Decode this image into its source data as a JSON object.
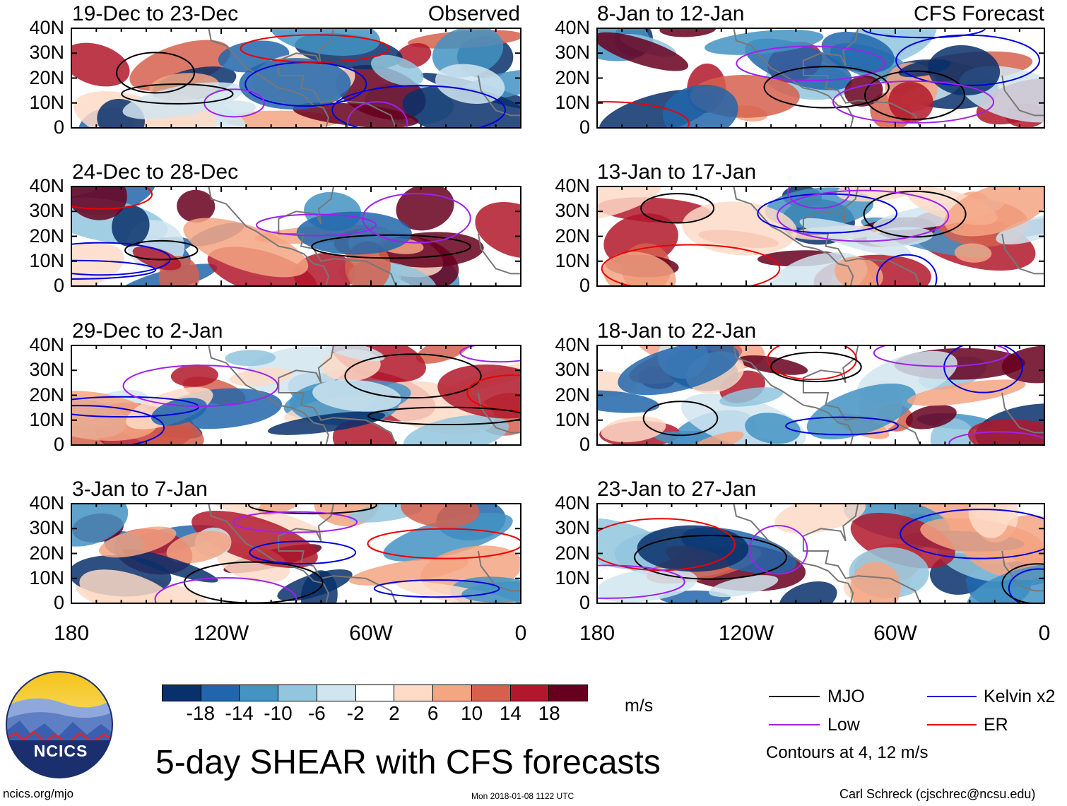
{
  "chart_data": {
    "type": "heatmap",
    "title": "5-day SHEAR with CFS forecasts",
    "units": "m/s",
    "x_ticks": [
      "180",
      "120W",
      "60W",
      "0"
    ],
    "y_ticks": [
      "40N",
      "30N",
      "20N",
      "10N",
      "0"
    ],
    "x_range": [
      -180,
      0
    ],
    "y_range": [
      0,
      40
    ],
    "observed_label": "Observed",
    "forecast_label": "CFS Forecast",
    "colorbar": {
      "ticks": [
        "-18",
        "-14",
        "-10",
        "-6",
        "-2",
        "2",
        "6",
        "10",
        "14",
        "18"
      ],
      "colors": [
        "#08306b",
        "#2166ac",
        "#4393c3",
        "#92c5de",
        "#d1e5f0",
        "#ffffff",
        "#fddbc7",
        "#f4a582",
        "#d6604d",
        "#b2182b",
        "#67001f"
      ]
    },
    "legend": [
      {
        "name": "MJO",
        "color": "#000000"
      },
      {
        "name": "Kelvin x2",
        "color": "#0000dd"
      },
      {
        "name": "Low",
        "color": "#a020f0"
      },
      {
        "name": "ER",
        "color": "#ee0000"
      }
    ],
    "contour_note": "Contours at 4, 12 m/s",
    "panels": [
      {
        "period": "19-Dec to 23-Dec",
        "kind": "observed"
      },
      {
        "period": "24-Dec to 28-Dec",
        "kind": "observed"
      },
      {
        "period": "29-Dec to 2-Jan",
        "kind": "observed"
      },
      {
        "period": "3-Jan to 7-Jan",
        "kind": "observed"
      },
      {
        "period": "8-Jan to 12-Jan",
        "kind": "forecast"
      },
      {
        "period": "13-Jan to 17-Jan",
        "kind": "forecast"
      },
      {
        "period": "18-Jan to 22-Jan",
        "kind": "forecast"
      },
      {
        "period": "23-Jan to 27-Jan",
        "kind": "forecast"
      }
    ]
  },
  "logo_text": "NCICS",
  "footer": {
    "left": "ncics.org/mjo",
    "middle": "Mon 2018-01-08 1122 UTC",
    "right": "Carl Schreck (cjschrec@ncsu.edu)"
  }
}
